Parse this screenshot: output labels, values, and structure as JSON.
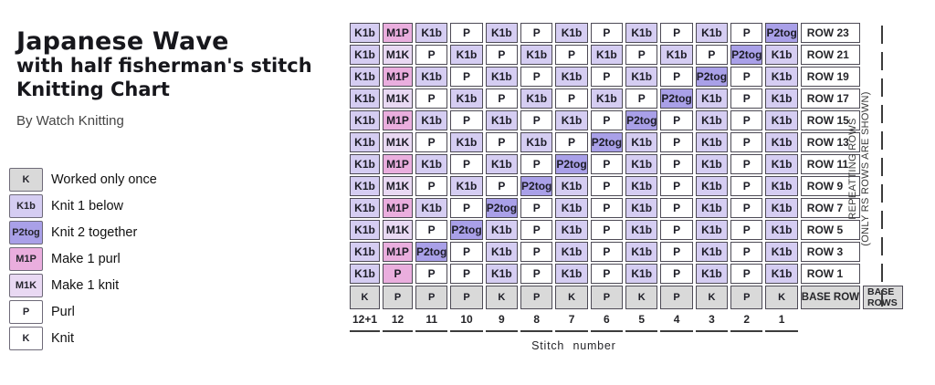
{
  "header": {
    "title_line1": "Japanese Wave",
    "title_line2": "with half fisherman's stitch",
    "title_line3": "Knitting Chart",
    "byline": "By Watch Knitting"
  },
  "legend": {
    "items": [
      {
        "key": "K",
        "c": "once",
        "label": "Worked only once"
      },
      {
        "key": "K1b",
        "c": "k1b",
        "label": "Knit 1 below"
      },
      {
        "key": "P2tog",
        "c": "p2tog",
        "label": "Knit 2 together"
      },
      {
        "key": "M1P",
        "c": "m1p",
        "label": "Make 1 purl"
      },
      {
        "key": "M1K",
        "c": "m1k",
        "label": "Make 1 knit"
      },
      {
        "key": "P",
        "c": "plain",
        "label": "Purl"
      },
      {
        "key": "K",
        "c": "plain",
        "label": "Knit"
      }
    ]
  },
  "colors": {
    "once": "#d9d9d9",
    "k1b": "#d5cdf2",
    "p2tog": "#a9a0e8",
    "m1p": "#eaaede",
    "m1k": "#e9d9f3",
    "plain": "#ffffff",
    "grid_border": "#4d4a55"
  },
  "chart_data": {
    "type": "table",
    "title": "Japanese Wave with half fisherman's stitch Knitting Chart",
    "xlabel": "Stitch number",
    "stitch_numbers": [
      "12+1",
      "12",
      "11",
      "10",
      "9",
      "8",
      "7",
      "6",
      "5",
      "4",
      "3",
      "2",
      "1"
    ],
    "rows": [
      {
        "label": "ROW 23",
        "cells": [
          {
            "t": "K1b",
            "c": "k1b"
          },
          {
            "t": "M1P",
            "c": "m1p"
          },
          {
            "t": "K1b",
            "c": "k1b"
          },
          {
            "t": "P",
            "c": "plain"
          },
          {
            "t": "K1b",
            "c": "k1b"
          },
          {
            "t": "P",
            "c": "plain"
          },
          {
            "t": "K1b",
            "c": "k1b"
          },
          {
            "t": "P",
            "c": "plain"
          },
          {
            "t": "K1b",
            "c": "k1b"
          },
          {
            "t": "P",
            "c": "plain"
          },
          {
            "t": "K1b",
            "c": "k1b"
          },
          {
            "t": "P",
            "c": "plain"
          },
          {
            "t": "P2tog",
            "c": "p2tog"
          }
        ]
      },
      {
        "label": "ROW 21",
        "cells": [
          {
            "t": "K1b",
            "c": "k1b"
          },
          {
            "t": "M1K",
            "c": "m1k"
          },
          {
            "t": "P",
            "c": "plain"
          },
          {
            "t": "K1b",
            "c": "k1b"
          },
          {
            "t": "P",
            "c": "plain"
          },
          {
            "t": "K1b",
            "c": "k1b"
          },
          {
            "t": "P",
            "c": "plain"
          },
          {
            "t": "K1b",
            "c": "k1b"
          },
          {
            "t": "P",
            "c": "plain"
          },
          {
            "t": "K1b",
            "c": "k1b"
          },
          {
            "t": "P",
            "c": "plain"
          },
          {
            "t": "P2tog",
            "c": "p2tog"
          },
          {
            "t": "K1b",
            "c": "k1b"
          }
        ]
      },
      {
        "label": "ROW 19",
        "cells": [
          {
            "t": "K1b",
            "c": "k1b"
          },
          {
            "t": "M1P",
            "c": "m1p"
          },
          {
            "t": "K1b",
            "c": "k1b"
          },
          {
            "t": "P",
            "c": "plain"
          },
          {
            "t": "K1b",
            "c": "k1b"
          },
          {
            "t": "P",
            "c": "plain"
          },
          {
            "t": "K1b",
            "c": "k1b"
          },
          {
            "t": "P",
            "c": "plain"
          },
          {
            "t": "K1b",
            "c": "k1b"
          },
          {
            "t": "P",
            "c": "plain"
          },
          {
            "t": "P2tog",
            "c": "p2tog"
          },
          {
            "t": "P",
            "c": "plain"
          },
          {
            "t": "K1b",
            "c": "k1b"
          }
        ]
      },
      {
        "label": "ROW 17",
        "cells": [
          {
            "t": "K1b",
            "c": "k1b"
          },
          {
            "t": "M1K",
            "c": "m1k"
          },
          {
            "t": "P",
            "c": "plain"
          },
          {
            "t": "K1b",
            "c": "k1b"
          },
          {
            "t": "P",
            "c": "plain"
          },
          {
            "t": "K1b",
            "c": "k1b"
          },
          {
            "t": "P",
            "c": "plain"
          },
          {
            "t": "K1b",
            "c": "k1b"
          },
          {
            "t": "P",
            "c": "plain"
          },
          {
            "t": "P2tog",
            "c": "p2tog"
          },
          {
            "t": "K1b",
            "c": "k1b"
          },
          {
            "t": "P",
            "c": "plain"
          },
          {
            "t": "K1b",
            "c": "k1b"
          }
        ]
      },
      {
        "label": "ROW 15",
        "cells": [
          {
            "t": "K1b",
            "c": "k1b"
          },
          {
            "t": "M1P",
            "c": "m1p"
          },
          {
            "t": "K1b",
            "c": "k1b"
          },
          {
            "t": "P",
            "c": "plain"
          },
          {
            "t": "K1b",
            "c": "k1b"
          },
          {
            "t": "P",
            "c": "plain"
          },
          {
            "t": "K1b",
            "c": "k1b"
          },
          {
            "t": "P",
            "c": "plain"
          },
          {
            "t": "P2tog",
            "c": "p2tog"
          },
          {
            "t": "P",
            "c": "plain"
          },
          {
            "t": "K1b",
            "c": "k1b"
          },
          {
            "t": "P",
            "c": "plain"
          },
          {
            "t": "K1b",
            "c": "k1b"
          }
        ]
      },
      {
        "label": "ROW 13",
        "cells": [
          {
            "t": "K1b",
            "c": "k1b"
          },
          {
            "t": "M1K",
            "c": "m1k"
          },
          {
            "t": "P",
            "c": "plain"
          },
          {
            "t": "K1b",
            "c": "k1b"
          },
          {
            "t": "P",
            "c": "plain"
          },
          {
            "t": "K1b",
            "c": "k1b"
          },
          {
            "t": "P",
            "c": "plain"
          },
          {
            "t": "P2tog",
            "c": "p2tog"
          },
          {
            "t": "K1b",
            "c": "k1b"
          },
          {
            "t": "P",
            "c": "plain"
          },
          {
            "t": "K1b",
            "c": "k1b"
          },
          {
            "t": "P",
            "c": "plain"
          },
          {
            "t": "K1b",
            "c": "k1b"
          }
        ]
      },
      {
        "label": "ROW 11",
        "cells": [
          {
            "t": "K1b",
            "c": "k1b"
          },
          {
            "t": "M1P",
            "c": "m1p"
          },
          {
            "t": "K1b",
            "c": "k1b"
          },
          {
            "t": "P",
            "c": "plain"
          },
          {
            "t": "K1b",
            "c": "k1b"
          },
          {
            "t": "P",
            "c": "plain"
          },
          {
            "t": "P2tog",
            "c": "p2tog"
          },
          {
            "t": "P",
            "c": "plain"
          },
          {
            "t": "K1b",
            "c": "k1b"
          },
          {
            "t": "P",
            "c": "plain"
          },
          {
            "t": "K1b",
            "c": "k1b"
          },
          {
            "t": "P",
            "c": "plain"
          },
          {
            "t": "K1b",
            "c": "k1b"
          }
        ]
      },
      {
        "label": "ROW 9",
        "cells": [
          {
            "t": "K1b",
            "c": "k1b"
          },
          {
            "t": "M1K",
            "c": "m1k"
          },
          {
            "t": "P",
            "c": "plain"
          },
          {
            "t": "K1b",
            "c": "k1b"
          },
          {
            "t": "P",
            "c": "plain"
          },
          {
            "t": "P2tog",
            "c": "p2tog"
          },
          {
            "t": "K1b",
            "c": "k1b"
          },
          {
            "t": "P",
            "c": "plain"
          },
          {
            "t": "K1b",
            "c": "k1b"
          },
          {
            "t": "P",
            "c": "plain"
          },
          {
            "t": "K1b",
            "c": "k1b"
          },
          {
            "t": "P",
            "c": "plain"
          },
          {
            "t": "K1b",
            "c": "k1b"
          }
        ]
      },
      {
        "label": "ROW 7",
        "cells": [
          {
            "t": "K1b",
            "c": "k1b"
          },
          {
            "t": "M1P",
            "c": "m1p"
          },
          {
            "t": "K1b",
            "c": "k1b"
          },
          {
            "t": "P",
            "c": "plain"
          },
          {
            "t": "P2tog",
            "c": "p2tog"
          },
          {
            "t": "P",
            "c": "plain"
          },
          {
            "t": "K1b",
            "c": "k1b"
          },
          {
            "t": "P",
            "c": "plain"
          },
          {
            "t": "K1b",
            "c": "k1b"
          },
          {
            "t": "P",
            "c": "plain"
          },
          {
            "t": "K1b",
            "c": "k1b"
          },
          {
            "t": "P",
            "c": "plain"
          },
          {
            "t": "K1b",
            "c": "k1b"
          }
        ]
      },
      {
        "label": "ROW 5",
        "cells": [
          {
            "t": "K1b",
            "c": "k1b"
          },
          {
            "t": "M1K",
            "c": "m1k"
          },
          {
            "t": "P",
            "c": "plain"
          },
          {
            "t": "P2tog",
            "c": "p2tog"
          },
          {
            "t": "K1b",
            "c": "k1b"
          },
          {
            "t": "P",
            "c": "plain"
          },
          {
            "t": "K1b",
            "c": "k1b"
          },
          {
            "t": "P",
            "c": "plain"
          },
          {
            "t": "K1b",
            "c": "k1b"
          },
          {
            "t": "P",
            "c": "plain"
          },
          {
            "t": "K1b",
            "c": "k1b"
          },
          {
            "t": "P",
            "c": "plain"
          },
          {
            "t": "K1b",
            "c": "k1b"
          }
        ]
      },
      {
        "label": "ROW 3",
        "cells": [
          {
            "t": "K1b",
            "c": "k1b"
          },
          {
            "t": "M1P",
            "c": "m1p"
          },
          {
            "t": "P2tog",
            "c": "p2tog"
          },
          {
            "t": "P",
            "c": "plain"
          },
          {
            "t": "K1b",
            "c": "k1b"
          },
          {
            "t": "P",
            "c": "plain"
          },
          {
            "t": "K1b",
            "c": "k1b"
          },
          {
            "t": "P",
            "c": "plain"
          },
          {
            "t": "K1b",
            "c": "k1b"
          },
          {
            "t": "P",
            "c": "plain"
          },
          {
            "t": "K1b",
            "c": "k1b"
          },
          {
            "t": "P",
            "c": "plain"
          },
          {
            "t": "K1b",
            "c": "k1b"
          }
        ]
      },
      {
        "label": "ROW 1",
        "cells": [
          {
            "t": "K1b",
            "c": "k1b"
          },
          {
            "t": "P",
            "c": "m1p"
          },
          {
            "t": "P",
            "c": "plain"
          },
          {
            "t": "P",
            "c": "plain"
          },
          {
            "t": "K1b",
            "c": "k1b"
          },
          {
            "t": "P",
            "c": "plain"
          },
          {
            "t": "K1b",
            "c": "k1b"
          },
          {
            "t": "P",
            "c": "plain"
          },
          {
            "t": "K1b",
            "c": "k1b"
          },
          {
            "t": "P",
            "c": "plain"
          },
          {
            "t": "K1b",
            "c": "k1b"
          },
          {
            "t": "P",
            "c": "plain"
          },
          {
            "t": "K1b",
            "c": "k1b"
          }
        ]
      }
    ],
    "base_row": {
      "label": "BASE ROW",
      "cells": [
        {
          "t": "K",
          "c": "once"
        },
        {
          "t": "P",
          "c": "once"
        },
        {
          "t": "P",
          "c": "once"
        },
        {
          "t": "P",
          "c": "once"
        },
        {
          "t": "K",
          "c": "once"
        },
        {
          "t": "P",
          "c": "once"
        },
        {
          "t": "K",
          "c": "once"
        },
        {
          "t": "P",
          "c": "once"
        },
        {
          "t": "K",
          "c": "once"
        },
        {
          "t": "P",
          "c": "once"
        },
        {
          "t": "K",
          "c": "once"
        },
        {
          "t": "P",
          "c": "once"
        },
        {
          "t": "K",
          "c": "once"
        }
      ]
    },
    "base_rows_label": "BASE ROWS",
    "side_note": {
      "line1": "REPEATTING ROWS",
      "line2": "(ONLY RS ROWS ARE SHOWN)"
    }
  }
}
